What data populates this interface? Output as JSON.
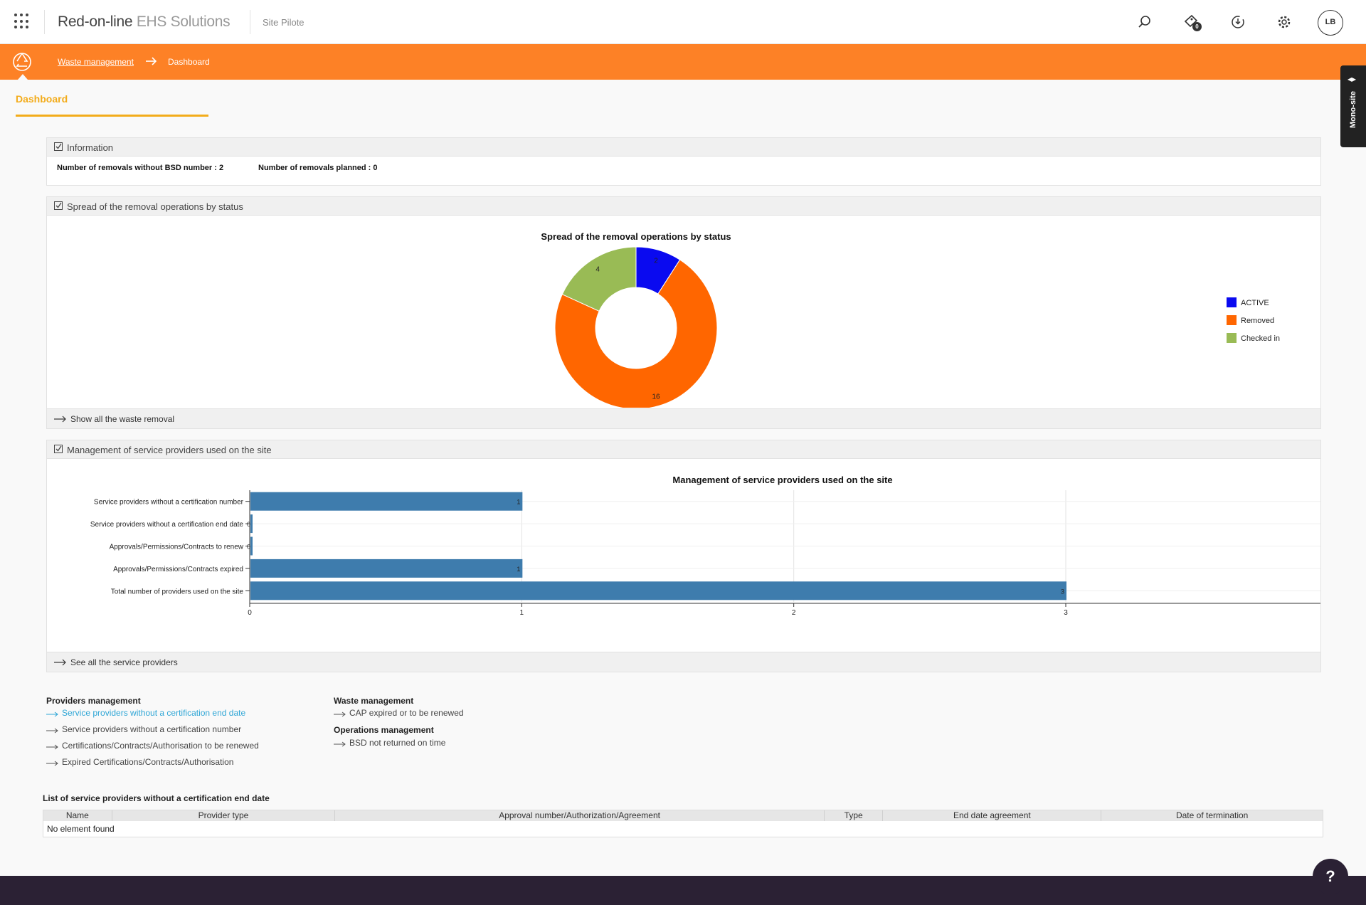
{
  "header": {
    "brand_main": "Red-on-line",
    "brand_sub": "EHS Solutions",
    "site": "Site Pilote",
    "notification_count": "0",
    "avatar": "LB",
    "icons": [
      "apps-grid-icon",
      "search-icon",
      "notification-icon",
      "download-clock-icon",
      "gear-icon"
    ]
  },
  "breadcrumb": {
    "parent": "Waste management",
    "current": "Dashboard"
  },
  "side_tab": {
    "label": "Mono-site"
  },
  "tab": {
    "label": "Dashboard"
  },
  "colors": {
    "orange": "#fd8126",
    "accent": "#f3ac1b",
    "active_link": "#2fa6d6",
    "bar": "#3e7cad",
    "footer": "#2b2134"
  },
  "information": {
    "title": "Information",
    "without_bsd": "Number of removals without BSD number : 2",
    "planned": "Number of removals planned : 0"
  },
  "spread_panel": {
    "title": "Spread of the removal operations by status",
    "footer_link": "Show all the waste removal"
  },
  "providers_panel": {
    "title": "Management of service providers used on the site",
    "footer_link": "See all the service providers"
  },
  "chart_data": [
    {
      "type": "pie",
      "title": "Spread of the removal operations by status",
      "donut": true,
      "legend_position": "right",
      "categories": [
        "ACTIVE",
        "Removed",
        "Checked in"
      ],
      "values": [
        2,
        16,
        4
      ],
      "colors": [
        "#0a0af0",
        "#ff6600",
        "#99bb55"
      ]
    },
    {
      "type": "bar",
      "orientation": "horizontal",
      "title": "Management of service providers used on the site",
      "categories": [
        "Service providers without a certification number",
        "Service providers without a certification end date",
        "Approvals/Permissions/Contracts to renew",
        "Approvals/Permissions/Contracts expired",
        "Total number of providers used on the site"
      ],
      "values": [
        1,
        0,
        0,
        1,
        3
      ],
      "xlim": [
        0,
        3.2
      ],
      "xticks": [
        "0",
        "1",
        "2",
        "3"
      ],
      "grid": true,
      "color": "#3e7cad"
    }
  ],
  "quick_links": {
    "providers": {
      "title": "Providers management",
      "items": [
        "Service providers without a certification end date",
        "Service providers without a certification number",
        "Certifications/Contracts/Authorisation to be renewed",
        "Expired Certifications/Contracts/Authorisation"
      ]
    },
    "waste": {
      "title": "Waste management",
      "items": [
        "CAP expired or to be renewed"
      ]
    },
    "operations": {
      "title": "Operations management",
      "items": [
        "BSD not returned on time"
      ]
    }
  },
  "table": {
    "title": "List of service providers without a certification end date",
    "columns": [
      "Name",
      "Provider type",
      "Approval number/Authorization/Agreement",
      "Type",
      "End date agreement",
      "Date of termination"
    ],
    "empty": "No element found"
  },
  "help": "?"
}
